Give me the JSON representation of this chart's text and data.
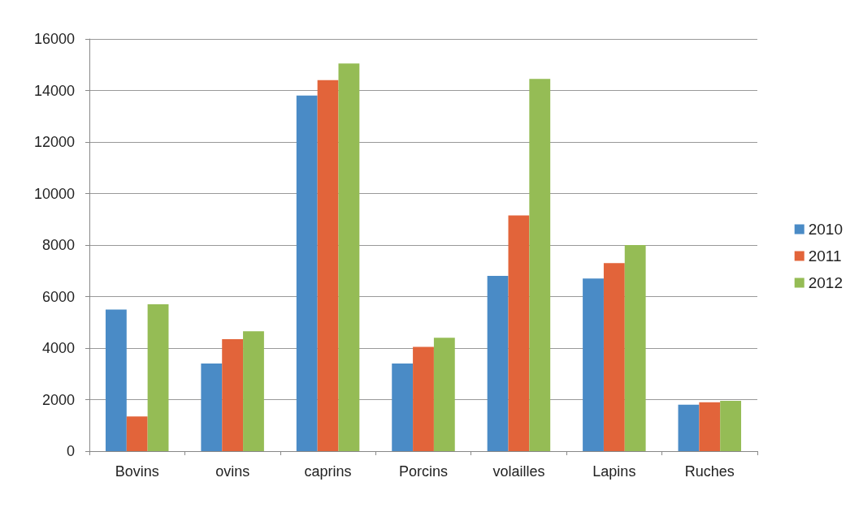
{
  "chart_data": {
    "type": "bar",
    "categories": [
      "Bovins",
      "ovins",
      "caprins",
      "Porcins",
      "volailles",
      "Lapins",
      "Ruches"
    ],
    "series": [
      {
        "name": "2010",
        "color": "#4a8bc6",
        "values": [
          5500,
          3400,
          13800,
          3400,
          6800,
          6700,
          1800
        ]
      },
      {
        "name": "2011",
        "color": "#e2643a",
        "values": [
          1350,
          4350,
          14400,
          4050,
          9150,
          7300,
          1900
        ]
      },
      {
        "name": "2012",
        "color": "#95bc55",
        "values": [
          5700,
          4650,
          15050,
          4400,
          14450,
          8000,
          1950
        ]
      }
    ],
    "ylim": [
      0,
      16000
    ],
    "yticks": [
      0,
      2000,
      4000,
      6000,
      8000,
      10000,
      12000,
      14000,
      16000
    ],
    "grid": "y",
    "legend": "right"
  }
}
